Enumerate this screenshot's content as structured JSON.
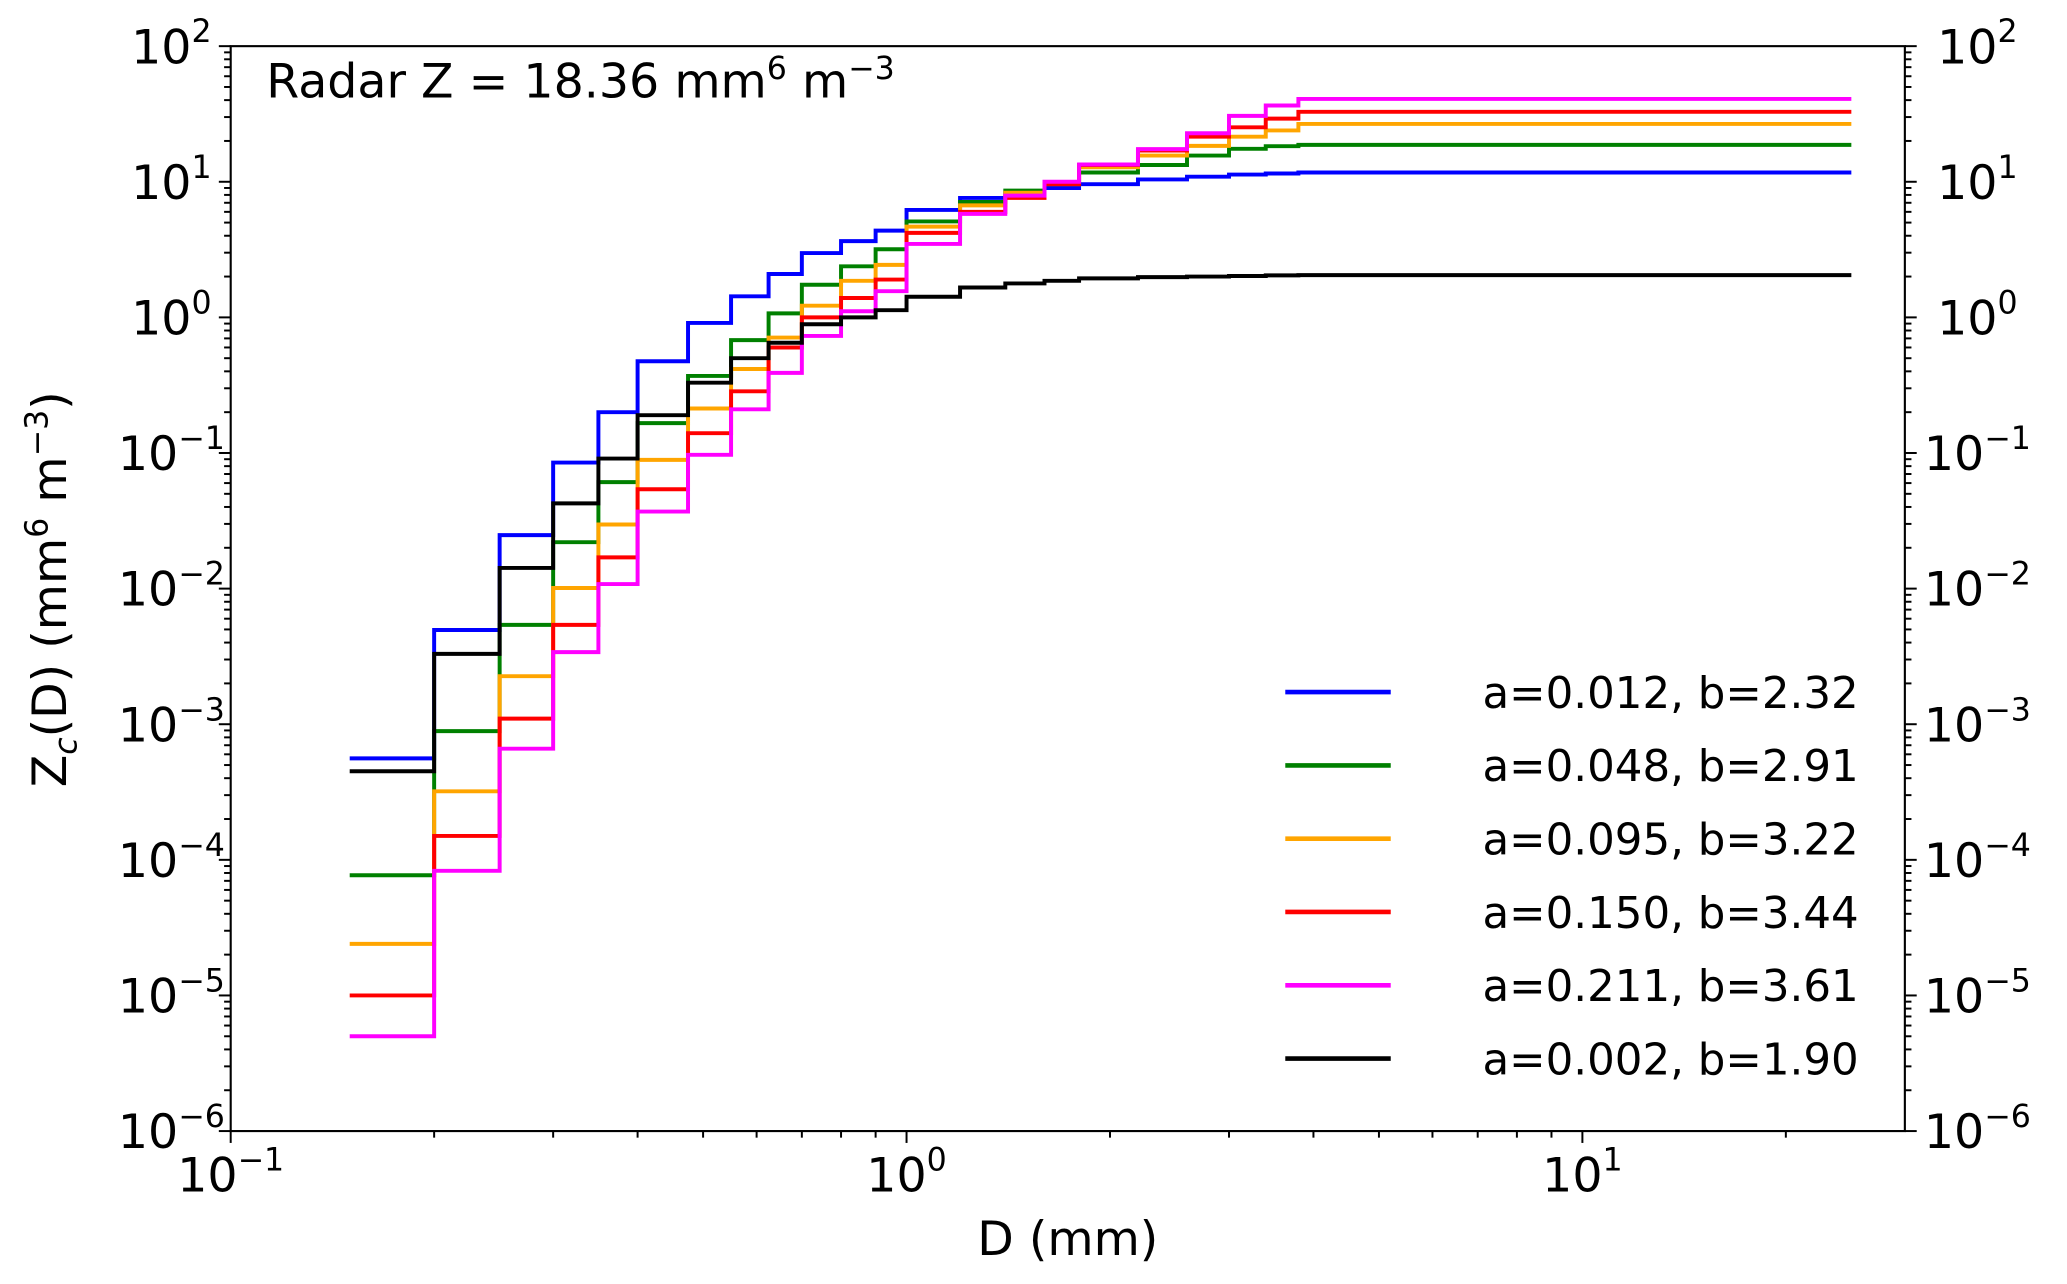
{
  "chart_data": {
    "type": "line",
    "step": "post",
    "annotation": {
      "text": "Radar Z = 18.36 mm",
      "sup1": "6",
      "mid": " m",
      "sup2": "−3"
    },
    "xlabel": "D (mm)",
    "ylabel": {
      "main": "Z",
      "sub": "c",
      "rest": "(D) (mm",
      "sup1": "6",
      "mid": " m",
      "sup2": "−3",
      "end": ")"
    },
    "xscale": "log",
    "yscale": "log",
    "xlim": [
      0.1,
      30
    ],
    "ylim": [
      1e-06,
      100
    ],
    "grid": false,
    "legend_placement": "lower-right",
    "right_axis_mirrored": true,
    "xticks": [
      {
        "base": "10",
        "exp": "−1",
        "value": 0.1
      },
      {
        "base": "10",
        "exp": "0",
        "value": 1
      },
      {
        "base": "10",
        "exp": "1",
        "value": 10
      }
    ],
    "yticks": [
      {
        "base": "10",
        "exp": "2",
        "value": 100
      },
      {
        "base": "10",
        "exp": "1",
        "value": 10
      },
      {
        "base": "10",
        "exp": "0",
        "value": 1
      },
      {
        "base": "10",
        "exp": "−1",
        "value": 0.1
      },
      {
        "base": "10",
        "exp": "−2",
        "value": 0.01
      },
      {
        "base": "10",
        "exp": "−3",
        "value": 0.001
      },
      {
        "base": "10",
        "exp": "−4",
        "value": 0.0001
      },
      {
        "base": "10",
        "exp": "−5",
        "value": 1e-05
      },
      {
        "base": "10",
        "exp": "−6",
        "value": 1e-06
      }
    ],
    "bin_edges": [
      0.15,
      0.2,
      0.25,
      0.3,
      0.35,
      0.4,
      0.475,
      0.55,
      0.625,
      0.7,
      0.8,
      0.9,
      1.0,
      1.2,
      1.4,
      1.6,
      1.8,
      2.2,
      2.6,
      3.0,
      3.4,
      3.8,
      25
    ],
    "series": [
      {
        "name": "a=0.012, b=2.32",
        "color": "#0000ff",
        "values": [
          0.00056,
          0.00495,
          0.0248,
          0.085,
          0.2,
          0.475,
          0.91,
          1.43,
          2.09,
          2.98,
          3.65,
          4.36,
          6.2,
          7.6,
          8.3,
          9.0,
          9.6,
          10.4,
          10.9,
          11.3,
          11.5,
          11.7
        ]
      },
      {
        "name": "a=0.048, b=2.91",
        "color": "#008000",
        "values": [
          7.7e-05,
          0.00089,
          0.0054,
          0.022,
          0.061,
          0.166,
          0.37,
          0.68,
          1.07,
          1.74,
          2.38,
          3.18,
          5.1,
          7.1,
          8.6,
          9.6,
          11.7,
          13.3,
          15.6,
          17.5,
          18.3,
          18.7
        ]
      },
      {
        "name": "a=0.095, b=3.22",
        "color": "#ffa500",
        "values": [
          2.4e-05,
          0.00032,
          0.00226,
          0.0101,
          0.0297,
          0.089,
          0.213,
          0.416,
          0.71,
          1.22,
          1.86,
          2.44,
          4.67,
          6.7,
          8.3,
          9.6,
          12.8,
          15.6,
          18.4,
          21.5,
          23.9,
          26.7
        ]
      },
      {
        "name": "a=0.150, b=3.44",
        "color": "#ff0000",
        "values": [
          1e-05,
          0.00015,
          0.0011,
          0.0054,
          0.017,
          0.054,
          0.14,
          0.285,
          0.6,
          1.0,
          1.39,
          1.9,
          4.2,
          6.0,
          7.6,
          9.6,
          13.3,
          17.0,
          21.5,
          25.2,
          29.2,
          32.8
        ]
      },
      {
        "name": "a=0.211, b=3.61",
        "color": "#ff00ff",
        "values": [
          5e-06,
          8.3e-05,
          0.00066,
          0.0034,
          0.0108,
          0.037,
          0.097,
          0.21,
          0.39,
          0.73,
          1.11,
          1.56,
          3.48,
          5.8,
          7.9,
          10.0,
          13.4,
          17.4,
          22.8,
          30.6,
          36.5,
          40.8
        ]
      },
      {
        "name": "a=0.002, b=1.90",
        "color": "#000000",
        "values": [
          0.00045,
          0.0033,
          0.0142,
          0.0425,
          0.091,
          0.19,
          0.33,
          0.5,
          0.65,
          0.89,
          1.0,
          1.13,
          1.42,
          1.66,
          1.78,
          1.86,
          1.94,
          1.98,
          2.0,
          2.02,
          2.04,
          2.05
        ]
      }
    ]
  }
}
